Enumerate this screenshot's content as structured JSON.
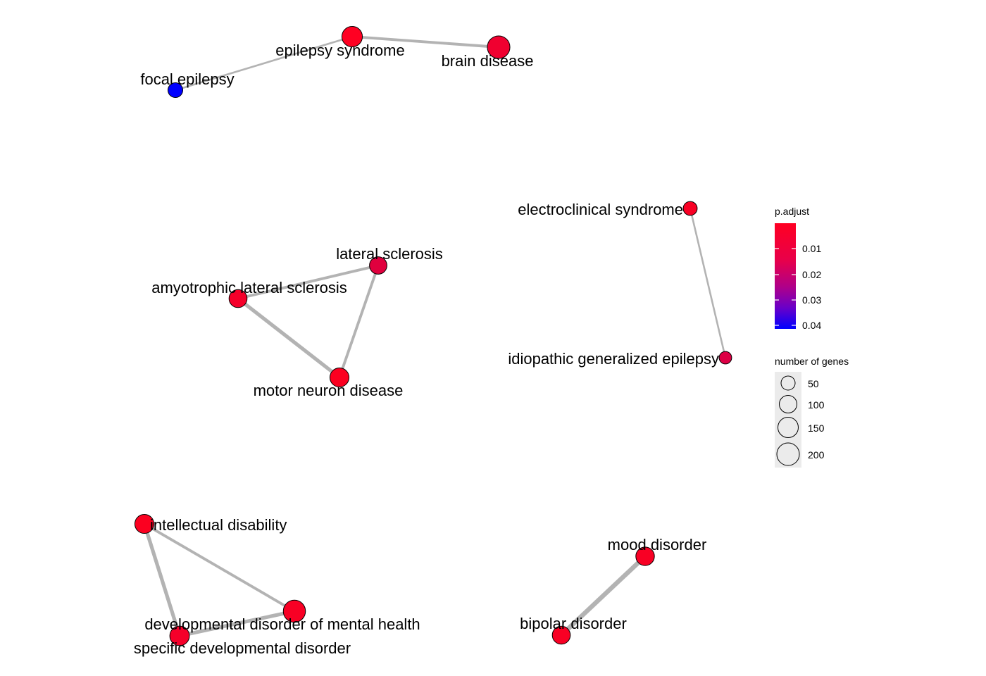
{
  "nodes": [
    {
      "id": "epilepsy_syndrome",
      "label": "epilepsy syndrome",
      "genes": 150,
      "p_adjust": 0.002,
      "color": "#ff0022"
    },
    {
      "id": "brain_disease",
      "label": "brain disease",
      "genes": 200,
      "p_adjust": 0.005,
      "color": "#f00030"
    },
    {
      "id": "focal_epilepsy",
      "label": "focal epilepsy",
      "genes": 50,
      "p_adjust": 0.04,
      "color": "#0000ff"
    },
    {
      "id": "lateral_sclerosis",
      "label": "lateral sclerosis",
      "genes": 90,
      "p_adjust": 0.012,
      "color": "#e0003e"
    },
    {
      "id": "amyotrophic_lateral_sclerosis",
      "label": "amyotrophic lateral sclerosis",
      "genes": 100,
      "p_adjust": 0.004,
      "color": "#f5002a"
    },
    {
      "id": "motor_neuron_disease",
      "label": "motor neuron disease",
      "genes": 120,
      "p_adjust": 0.002,
      "color": "#fb0020"
    },
    {
      "id": "electroclinical_syndrome",
      "label": "electroclinical syndrome",
      "genes": 40,
      "p_adjust": 0.003,
      "color": "#f80024"
    },
    {
      "id": "idiopathic_generalized_epilepsy",
      "label": "idiopathic generalized epilepsy",
      "genes": 25,
      "p_adjust": 0.014,
      "color": "#dd0045"
    },
    {
      "id": "intellectual_disability",
      "label": "intellectual disability",
      "genes": 120,
      "p_adjust": 0.002,
      "color": "#fb0020"
    },
    {
      "id": "developmental_disorder_of_mental_health",
      "label": "developmental disorder of mental health",
      "genes": 190,
      "p_adjust": 0.003,
      "color": "#f80024"
    },
    {
      "id": "specific_developmental_disorder",
      "label": "specific developmental disorder",
      "genes": 130,
      "p_adjust": 0.004,
      "color": "#f5002a"
    },
    {
      "id": "mood_disorder",
      "label": "mood disorder",
      "genes": 110,
      "p_adjust": 0.003,
      "color": "#f80024"
    },
    {
      "id": "bipolar_disorder",
      "label": "bipolar disorder",
      "genes": 100,
      "p_adjust": 0.003,
      "color": "#f80024"
    }
  ],
  "edges": [
    {
      "source": "epilepsy_syndrome",
      "target": "brain_disease",
      "weight": 3
    },
    {
      "source": "epilepsy_syndrome",
      "target": "focal_epilepsy",
      "weight": 2
    },
    {
      "source": "lateral_sclerosis",
      "target": "amyotrophic_lateral_sclerosis",
      "weight": 3
    },
    {
      "source": "amyotrophic_lateral_sclerosis",
      "target": "motor_neuron_disease",
      "weight": 4
    },
    {
      "source": "lateral_sclerosis",
      "target": "motor_neuron_disease",
      "weight": 3
    },
    {
      "source": "electroclinical_syndrome",
      "target": "idiopathic_generalized_epilepsy",
      "weight": 2
    },
    {
      "source": "intellectual_disability",
      "target": "developmental_disorder_of_mental_health",
      "weight": 3
    },
    {
      "source": "intellectual_disability",
      "target": "specific_developmental_disorder",
      "weight": 4
    },
    {
      "source": "developmental_disorder_of_mental_health",
      "target": "specific_developmental_disorder",
      "weight": 4
    },
    {
      "source": "mood_disorder",
      "target": "bipolar_disorder",
      "weight": 5
    }
  ],
  "legend": {
    "color_title": "p.adjust",
    "color_ticks": [
      "0.01",
      "0.02",
      "0.03",
      "0.04"
    ],
    "color_scale": [
      "#ff0022",
      "#0000ff"
    ],
    "size_title": "number of genes",
    "size_ticks": [
      "50",
      "100",
      "150",
      "200"
    ]
  },
  "edge_color": "#b3b3b3"
}
